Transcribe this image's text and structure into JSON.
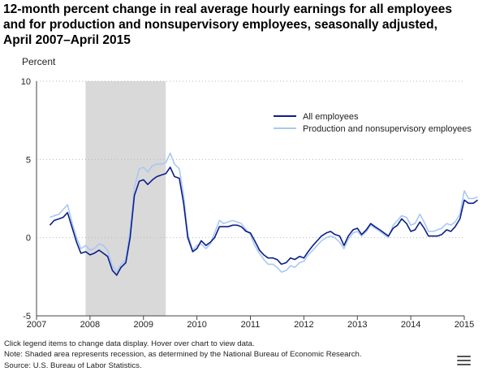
{
  "title_lines": [
    "12-month percent change in real average hourly earnings for all employees",
    "and for production and nonsupervisory employees, seasonally adjusted,",
    "April 2007–April 2015"
  ],
  "notes": {
    "instruction": "Click legend items to change data display. Hover over chart to view data.",
    "shading_note": "Note: Shaded area represents recession, as determined by the National Bureau of Economic Research.",
    "source": "Source: U.S. Bureau of Labor Statistics."
  },
  "menu_icon": "hamburger-menu-icon",
  "chart_data": {
    "type": "line",
    "ylabel": "Percent",
    "xlabel": "",
    "ylim": [
      -5,
      10
    ],
    "xlim": [
      2007.0,
      2015.0
    ],
    "y_ticks": [
      10,
      5,
      0,
      -5
    ],
    "x_ticks": [
      "2007",
      "2008",
      "2009",
      "2010",
      "2011",
      "2012",
      "2013",
      "2014",
      "2015"
    ],
    "grid": "horizontal",
    "legend_position": "top-right",
    "recession": {
      "start": "Dec 2007",
      "end": "Jun 2009"
    },
    "recession_color": "#d9d9d9",
    "series": [
      {
        "name": "All employees",
        "color": "#0b1f8a",
        "values": [
          [
            2007.25,
            0.8
          ],
          [
            2007.33,
            1.1
          ],
          [
            2007.42,
            1.2
          ],
          [
            2007.5,
            1.3
          ],
          [
            2007.58,
            1.6
          ],
          [
            2007.67,
            0.6
          ],
          [
            2007.75,
            -0.3
          ],
          [
            2007.83,
            -1.0
          ],
          [
            2007.92,
            -0.9
          ],
          [
            2008.0,
            -1.1
          ],
          [
            2008.08,
            -1.0
          ],
          [
            2008.17,
            -0.8
          ],
          [
            2008.25,
            -1.0
          ],
          [
            2008.33,
            -1.2
          ],
          [
            2008.42,
            -2.1
          ],
          [
            2008.5,
            -2.4
          ],
          [
            2008.58,
            -1.9
          ],
          [
            2008.67,
            -1.6
          ],
          [
            2008.75,
            0.0
          ],
          [
            2008.83,
            2.7
          ],
          [
            2008.92,
            3.6
          ],
          [
            2009.0,
            3.7
          ],
          [
            2009.08,
            3.4
          ],
          [
            2009.17,
            3.7
          ],
          [
            2009.25,
            3.9
          ],
          [
            2009.33,
            4.0
          ],
          [
            2009.42,
            4.1
          ],
          [
            2009.5,
            4.5
          ],
          [
            2009.58,
            3.9
          ],
          [
            2009.67,
            3.8
          ],
          [
            2009.75,
            2.2
          ],
          [
            2009.83,
            0.0
          ],
          [
            2009.92,
            -0.9
          ],
          [
            2010.0,
            -0.7
          ],
          [
            2010.08,
            -0.2
          ],
          [
            2010.17,
            -0.5
          ],
          [
            2010.25,
            -0.3
          ],
          [
            2010.33,
            0.0
          ],
          [
            2010.42,
            0.7
          ],
          [
            2010.5,
            0.7
          ],
          [
            2010.58,
            0.7
          ],
          [
            2010.67,
            0.8
          ],
          [
            2010.75,
            0.8
          ],
          [
            2010.83,
            0.7
          ],
          [
            2010.92,
            0.4
          ],
          [
            2011.0,
            0.3
          ],
          [
            2011.08,
            -0.2
          ],
          [
            2011.17,
            -0.8
          ],
          [
            2011.25,
            -1.1
          ],
          [
            2011.33,
            -1.3
          ],
          [
            2011.42,
            -1.3
          ],
          [
            2011.5,
            -1.4
          ],
          [
            2011.58,
            -1.7
          ],
          [
            2011.67,
            -1.6
          ],
          [
            2011.75,
            -1.3
          ],
          [
            2011.83,
            -1.4
          ],
          [
            2011.92,
            -1.2
          ],
          [
            2012.0,
            -1.3
          ],
          [
            2012.08,
            -0.9
          ],
          [
            2012.17,
            -0.5
          ],
          [
            2012.25,
            -0.2
          ],
          [
            2012.33,
            0.1
          ],
          [
            2012.42,
            0.3
          ],
          [
            2012.5,
            0.4
          ],
          [
            2012.58,
            0.2
          ],
          [
            2012.67,
            0.1
          ],
          [
            2012.75,
            -0.5
          ],
          [
            2012.83,
            0.1
          ],
          [
            2012.92,
            0.5
          ],
          [
            2013.0,
            0.6
          ],
          [
            2013.08,
            0.2
          ],
          [
            2013.17,
            0.5
          ],
          [
            2013.25,
            0.9
          ],
          [
            2013.33,
            0.7
          ],
          [
            2013.42,
            0.5
          ],
          [
            2013.5,
            0.3
          ],
          [
            2013.58,
            0.1
          ],
          [
            2013.67,
            0.6
          ],
          [
            2013.75,
            0.8
          ],
          [
            2013.83,
            1.2
          ],
          [
            2013.92,
            0.9
          ],
          [
            2014.0,
            0.4
          ],
          [
            2014.08,
            0.5
          ],
          [
            2014.17,
            1.0
          ],
          [
            2014.25,
            0.6
          ],
          [
            2014.33,
            0.1
          ],
          [
            2014.42,
            0.1
          ],
          [
            2014.5,
            0.1
          ],
          [
            2014.58,
            0.2
          ],
          [
            2014.67,
            0.5
          ],
          [
            2014.75,
            0.4
          ],
          [
            2014.83,
            0.7
          ],
          [
            2014.92,
            1.2
          ],
          [
            2015.0,
            2.4
          ],
          [
            2015.08,
            2.2
          ],
          [
            2015.17,
            2.2
          ],
          [
            2015.25,
            2.4
          ]
        ]
      },
      {
        "name": "Production and nonsupervisory employees",
        "color": "#a9c8f2",
        "values": [
          [
            2007.25,
            1.3
          ],
          [
            2007.33,
            1.4
          ],
          [
            2007.42,
            1.5
          ],
          [
            2007.5,
            1.8
          ],
          [
            2007.58,
            2.1
          ],
          [
            2007.67,
            0.9
          ],
          [
            2007.75,
            0.0
          ],
          [
            2007.83,
            -0.7
          ],
          [
            2007.92,
            -0.5
          ],
          [
            2008.0,
            -0.8
          ],
          [
            2008.08,
            -0.7
          ],
          [
            2008.17,
            -0.4
          ],
          [
            2008.25,
            -0.5
          ],
          [
            2008.33,
            -0.8
          ],
          [
            2008.42,
            -1.8
          ],
          [
            2008.5,
            -2.2
          ],
          [
            2008.58,
            -1.7
          ],
          [
            2008.67,
            -1.4
          ],
          [
            2008.75,
            0.5
          ],
          [
            2008.83,
            3.2
          ],
          [
            2008.92,
            4.4
          ],
          [
            2009.0,
            4.5
          ],
          [
            2009.08,
            4.2
          ],
          [
            2009.17,
            4.6
          ],
          [
            2009.25,
            4.7
          ],
          [
            2009.33,
            4.7
          ],
          [
            2009.42,
            4.8
          ],
          [
            2009.5,
            5.4
          ],
          [
            2009.58,
            4.7
          ],
          [
            2009.67,
            4.4
          ],
          [
            2009.75,
            2.7
          ],
          [
            2009.83,
            0.2
          ],
          [
            2009.92,
            -0.8
          ],
          [
            2010.0,
            -0.5
          ],
          [
            2010.08,
            -0.4
          ],
          [
            2010.17,
            -0.7
          ],
          [
            2010.25,
            -0.4
          ],
          [
            2010.33,
            0.3
          ],
          [
            2010.42,
            1.1
          ],
          [
            2010.5,
            0.9
          ],
          [
            2010.58,
            1.0
          ],
          [
            2010.67,
            1.1
          ],
          [
            2010.75,
            1.0
          ],
          [
            2010.83,
            0.9
          ],
          [
            2010.92,
            0.5
          ],
          [
            2011.0,
            0.2
          ],
          [
            2011.08,
            -0.5
          ],
          [
            2011.17,
            -1.0
          ],
          [
            2011.25,
            -1.4
          ],
          [
            2011.33,
            -1.7
          ],
          [
            2011.42,
            -1.7
          ],
          [
            2011.5,
            -1.9
          ],
          [
            2011.58,
            -2.2
          ],
          [
            2011.67,
            -2.1
          ],
          [
            2011.75,
            -1.8
          ],
          [
            2011.83,
            -1.9
          ],
          [
            2011.92,
            -1.6
          ],
          [
            2012.0,
            -1.5
          ],
          [
            2012.08,
            -1.1
          ],
          [
            2012.17,
            -0.8
          ],
          [
            2012.25,
            -0.5
          ],
          [
            2012.33,
            -0.2
          ],
          [
            2012.42,
            0.0
          ],
          [
            2012.5,
            0.1
          ],
          [
            2012.58,
            0.0
          ],
          [
            2012.67,
            -0.3
          ],
          [
            2012.75,
            -0.7
          ],
          [
            2012.83,
            -0.1
          ],
          [
            2012.92,
            0.3
          ],
          [
            2013.0,
            0.4
          ],
          [
            2013.08,
            0.1
          ],
          [
            2013.17,
            0.4
          ],
          [
            2013.25,
            0.8
          ],
          [
            2013.33,
            0.6
          ],
          [
            2013.42,
            0.4
          ],
          [
            2013.5,
            0.2
          ],
          [
            2013.58,
            0.0
          ],
          [
            2013.67,
            0.8
          ],
          [
            2013.75,
            1.1
          ],
          [
            2013.83,
            1.4
          ],
          [
            2013.92,
            1.3
          ],
          [
            2014.0,
            0.8
          ],
          [
            2014.08,
            0.9
          ],
          [
            2014.17,
            1.5
          ],
          [
            2014.25,
            1.0
          ],
          [
            2014.33,
            0.4
          ],
          [
            2014.42,
            0.4
          ],
          [
            2014.5,
            0.5
          ],
          [
            2014.58,
            0.6
          ],
          [
            2014.67,
            0.9
          ],
          [
            2014.75,
            0.8
          ],
          [
            2014.83,
            1.0
          ],
          [
            2014.92,
            1.5
          ],
          [
            2015.0,
            3.0
          ],
          [
            2015.08,
            2.5
          ],
          [
            2015.17,
            2.5
          ],
          [
            2015.25,
            2.6
          ]
        ]
      }
    ]
  }
}
